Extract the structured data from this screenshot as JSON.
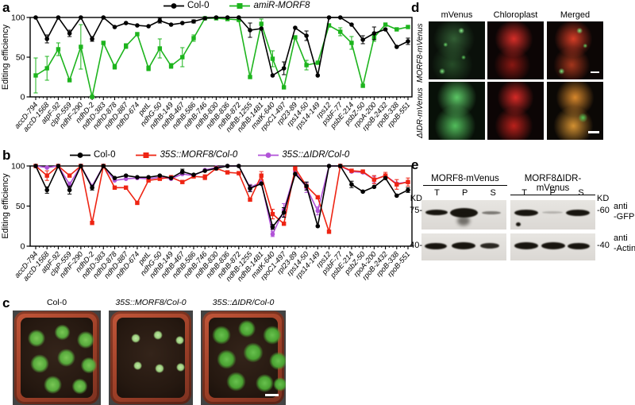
{
  "panels": {
    "a": "a",
    "b": "b",
    "c": "c",
    "d": "d",
    "e": "e"
  },
  "chart_data": [
    {
      "id": "a",
      "type": "line",
      "title": "",
      "xlabel": "",
      "ylabel": "Editing efficiency",
      "ylim": [
        0,
        100
      ],
      "yticks": [
        0,
        50,
        100
      ],
      "grid": false,
      "legend_position": "top",
      "categories": [
        "accD-794",
        "accD-1568",
        "atpF-92",
        "clpP-559",
        "ndhF-290",
        "ndhD-2",
        "ndhD-383",
        "ndhD-878",
        "ndhD-887",
        "ndhD-674",
        "petL",
        "ndhG-50",
        "ndhB-149",
        "ndhB-467",
        "ndhB-586",
        "ndhB-746",
        "ndhB-830",
        "ndhB-836",
        "ndhB-872",
        "ndhB-1255",
        "ndhB-1481",
        "matK-640",
        "rpoC1-497",
        "rpl23-89",
        "rps14-50",
        "rps14-149",
        "rps12",
        "psbF-77",
        "psbE-214",
        "psbZ-50",
        "rpoA-200",
        "rpoB-2432",
        "rpoB-338",
        "rpoB-551"
      ],
      "series": [
        {
          "name": "Col-0",
          "color": "#000000",
          "marker": "circle",
          "italic": false,
          "values": [
            100,
            73,
            100,
            80,
            100,
            73,
            100,
            88,
            93,
            90,
            89,
            96,
            91,
            93,
            95,
            99,
            100,
            100,
            100,
            84,
            86,
            27,
            36,
            87,
            77,
            27,
            100,
            100,
            91,
            72,
            80,
            85,
            63,
            70
          ],
          "errors": [
            0,
            5,
            0,
            4,
            0,
            3,
            0,
            0,
            0,
            0,
            0,
            3,
            0,
            0,
            2,
            0,
            0,
            0,
            0,
            9,
            0,
            0,
            8,
            0,
            6,
            0,
            0,
            0,
            0,
            5,
            8,
            0,
            0,
            4
          ]
        },
        {
          "name": "amiR-MORF8",
          "color": "#1db41d",
          "marker": "square",
          "italic": true,
          "values": [
            27,
            36,
            60,
            21,
            63,
            0,
            68,
            38,
            64,
            79,
            36,
            61,
            39,
            50,
            74,
            99,
            99,
            98,
            97,
            25,
            92,
            48,
            12,
            75,
            40,
            43,
            90,
            82,
            68,
            14,
            75,
            91,
            85,
            88
          ],
          "errors": [
            22,
            15,
            8,
            0,
            28,
            0,
            0,
            3,
            3,
            0,
            3,
            12,
            3,
            12,
            4,
            0,
            0,
            0,
            0,
            0,
            6,
            10,
            0,
            0,
            6,
            0,
            0,
            5,
            8,
            0,
            5,
            0,
            0,
            0
          ]
        }
      ]
    },
    {
      "id": "b",
      "type": "line",
      "title": "",
      "xlabel": "",
      "ylabel": "Editing efficiency",
      "ylim": [
        0,
        100
      ],
      "yticks": [
        0,
        50,
        100
      ],
      "grid": false,
      "legend_position": "top",
      "categories": [
        "accD-794",
        "accD-1568",
        "atpF-92",
        "clpP-559",
        "ndhF-290",
        "ndhD-2",
        "ndhD-383",
        "ndhD-878",
        "ndhD-887",
        "ndhD-674",
        "petL",
        "ndhG-50",
        "ndhB-149",
        "ndhB-467",
        "ndhB-586",
        "ndhB-746",
        "ndhB-830",
        "ndhB-836",
        "ndhB-872",
        "ndhB-1255",
        "ndhB-1481",
        "matK-640",
        "rpoC1-497",
        "rpl23-89",
        "rps14-50",
        "rps14-149",
        "rps12",
        "psbF-77",
        "psbE-214",
        "psbZ-50",
        "rpoA-200",
        "rpoB-2432",
        "rpoB-338",
        "rpoB-551"
      ],
      "series": [
        {
          "name": "Col-0",
          "color": "#000000",
          "marker": "circle",
          "italic": false,
          "values": [
            100,
            70,
            100,
            70,
            100,
            73,
            100,
            85,
            88,
            86,
            86,
            88,
            85,
            93,
            89,
            94,
            97,
            100,
            100,
            72,
            78,
            24,
            42,
            90,
            75,
            25,
            100,
            100,
            77,
            68,
            74,
            85,
            63,
            70
          ],
          "errors": [
            0,
            4,
            0,
            5,
            0,
            3,
            0,
            0,
            0,
            0,
            0,
            0,
            0,
            3,
            0,
            0,
            0,
            0,
            0,
            4,
            0,
            3,
            6,
            0,
            5,
            0,
            0,
            0,
            4,
            0,
            0,
            0,
            0,
            3
          ]
        },
        {
          "name": "35S::MORF8/Col-0",
          "color": "#ee2413",
          "marker": "square",
          "italic": true,
          "values": [
            100,
            88,
            100,
            88,
            100,
            29,
            100,
            73,
            73,
            54,
            82,
            84,
            86,
            80,
            87,
            86,
            97,
            92,
            91,
            58,
            88,
            40,
            28,
            97,
            75,
            61,
            18,
            100,
            94,
            93,
            83,
            88,
            77,
            80
          ],
          "errors": [
            0,
            6,
            0,
            0,
            0,
            0,
            0,
            0,
            0,
            0,
            0,
            0,
            0,
            0,
            0,
            3,
            0,
            0,
            0,
            0,
            5,
            6,
            0,
            0,
            0,
            0,
            0,
            0,
            0,
            0,
            5,
            4,
            6,
            5
          ]
        },
        {
          "name": "35S::ΔIDR/Col-0",
          "color": "#b153d8",
          "marker": "circle",
          "italic": true,
          "values": [
            100,
            98,
            100,
            77,
            100,
            75,
            100,
            82,
            84,
            85,
            84,
            86,
            84,
            90,
            88,
            95,
            98,
            100,
            100,
            73,
            80,
            15,
            45,
            93,
            73,
            44,
            100,
            100,
            93,
            92,
            83,
            88,
            78,
            80
          ],
          "errors": [
            0,
            0,
            0,
            3,
            0,
            0,
            0,
            0,
            0,
            0,
            0,
            0,
            0,
            0,
            0,
            0,
            0,
            0,
            0,
            4,
            0,
            3,
            8,
            0,
            6,
            5,
            0,
            0,
            0,
            0,
            4,
            0,
            0,
            0
          ]
        }
      ]
    }
  ],
  "panel_c": {
    "pots": [
      {
        "title": "Col-0",
        "italic": false
      },
      {
        "title": "35S::MORF8/Col-0",
        "italic": true
      },
      {
        "title": "35S::ΔIDR/Col-0",
        "italic": true
      }
    ]
  },
  "panel_d": {
    "col_headers": [
      "mVenus",
      "Chloroplast",
      "Merged"
    ],
    "row_labels": [
      "MORF8-mVenus",
      "ΔIDR-mVenus"
    ]
  },
  "panel_e": {
    "groups": [
      {
        "title": "MORF8-mVenus",
        "lanes": [
          "T",
          "P",
          "S"
        ]
      },
      {
        "title": "MORF8ΔIDR-mVenus",
        "lanes": [
          "T",
          "P",
          "S"
        ]
      }
    ],
    "markers": {
      "kd_left_top": "KD",
      "left_top": "75-",
      "kd_right_top": "KD",
      "right_top": "-60",
      "left_bottom": "40-",
      "right_bottom": "-40"
    },
    "antibodies": [
      {
        "line1": "anti",
        "line2": "-GFP"
      },
      {
        "line1": "anti",
        "line2": "-Actin"
      }
    ]
  }
}
